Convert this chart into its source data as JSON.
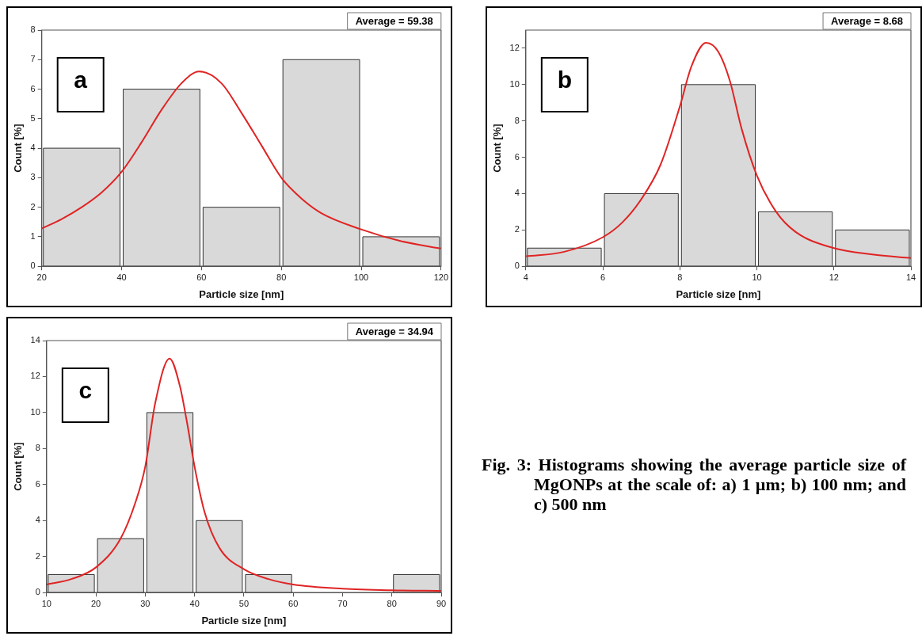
{
  "chart_data": [
    {
      "type": "histogram",
      "xlabel": "Particle size [nm]",
      "ylabel": "Count [%]",
      "annotations": [
        "a",
        "Average = 59.38"
      ],
      "bins": [
        20,
        40,
        60,
        80,
        100,
        120
      ],
      "values": [
        4,
        6,
        2,
        7,
        1
      ],
      "color": "#d9d9d9",
      "xlim": [
        20,
        120
      ],
      "xticks": [
        20,
        40,
        60,
        80,
        100,
        120
      ],
      "ylim": [
        0,
        8
      ],
      "yticks": [
        0,
        1,
        2,
        3,
        4,
        5,
        6,
        7,
        8
      ],
      "series": [
        {
          "type": "line",
          "color": "#e02424",
          "x": [
            20,
            25,
            30,
            35,
            40,
            45,
            50,
            55,
            59.4,
            65,
            70,
            75,
            80,
            85,
            90,
            100,
            110,
            120
          ],
          "values": [
            1.28,
            1.6,
            2.0,
            2.5,
            3.2,
            4.2,
            5.3,
            6.2,
            6.6,
            6.2,
            5.2,
            4.1,
            3.0,
            2.3,
            1.8,
            1.25,
            0.85,
            0.6
          ]
        }
      ]
    },
    {
      "type": "histogram",
      "xlabel": "Particle size [nm]",
      "ylabel": "Count [%]",
      "annotations": [
        "b",
        "Average = 8.68"
      ],
      "bins": [
        4,
        6,
        8,
        10,
        12,
        14
      ],
      "values": [
        1,
        4,
        10,
        3,
        2
      ],
      "color": "#d9d9d9",
      "xlim": [
        4,
        14
      ],
      "xticks": [
        4,
        6,
        8,
        10,
        12,
        14
      ],
      "ylim": [
        0,
        13
      ],
      "yticks": [
        0,
        2,
        4,
        6,
        8,
        10,
        12
      ],
      "series": [
        {
          "type": "line",
          "color": "#e02424",
          "x": [
            4,
            5,
            6,
            6.5,
            7,
            7.5,
            8,
            8.3,
            8.68,
            9,
            9.3,
            9.6,
            10,
            10.5,
            11,
            12,
            13,
            14
          ],
          "values": [
            0.55,
            0.8,
            1.6,
            2.4,
            3.7,
            5.6,
            8.8,
            11.0,
            12.3,
            11.8,
            10.2,
            7.6,
            5.0,
            3.0,
            1.9,
            1.0,
            0.65,
            0.45
          ]
        }
      ]
    },
    {
      "type": "histogram",
      "xlabel": "Particle size [nm]",
      "ylabel": "Count [%]",
      "annotations": [
        "c",
        "Average = 34.94"
      ],
      "bins": [
        10,
        20,
        30,
        40,
        50,
        60,
        70,
        80,
        90
      ],
      "values": [
        1,
        3,
        10,
        4,
        1,
        0,
        0,
        1
      ],
      "color": "#d9d9d9",
      "xlim": [
        10,
        90
      ],
      "xticks": [
        10,
        20,
        30,
        40,
        50,
        60,
        70,
        80,
        90
      ],
      "ylim": [
        0,
        14
      ],
      "yticks": [
        0,
        2,
        4,
        6,
        8,
        10,
        12,
        14
      ],
      "series": [
        {
          "type": "line",
          "color": "#e02424",
          "x": [
            10,
            15,
            20,
            25,
            28,
            30,
            32,
            34.94,
            37,
            38.5,
            40,
            42,
            45,
            50,
            55,
            60,
            70,
            80,
            90
          ],
          "values": [
            0.45,
            0.75,
            1.4,
            3.0,
            5.0,
            7.0,
            10.5,
            13.0,
            11.5,
            9.4,
            7.0,
            4.5,
            2.5,
            1.3,
            0.75,
            0.45,
            0.22,
            0.13,
            0.1
          ]
        }
      ]
    },
    {
      "type": "other",
      "title": "Fig. 3: Histograms showing the average particle size of MgONPs at the scale of: a) 1 µm; b) 100 nm; and c) 500 nm"
    }
  ]
}
